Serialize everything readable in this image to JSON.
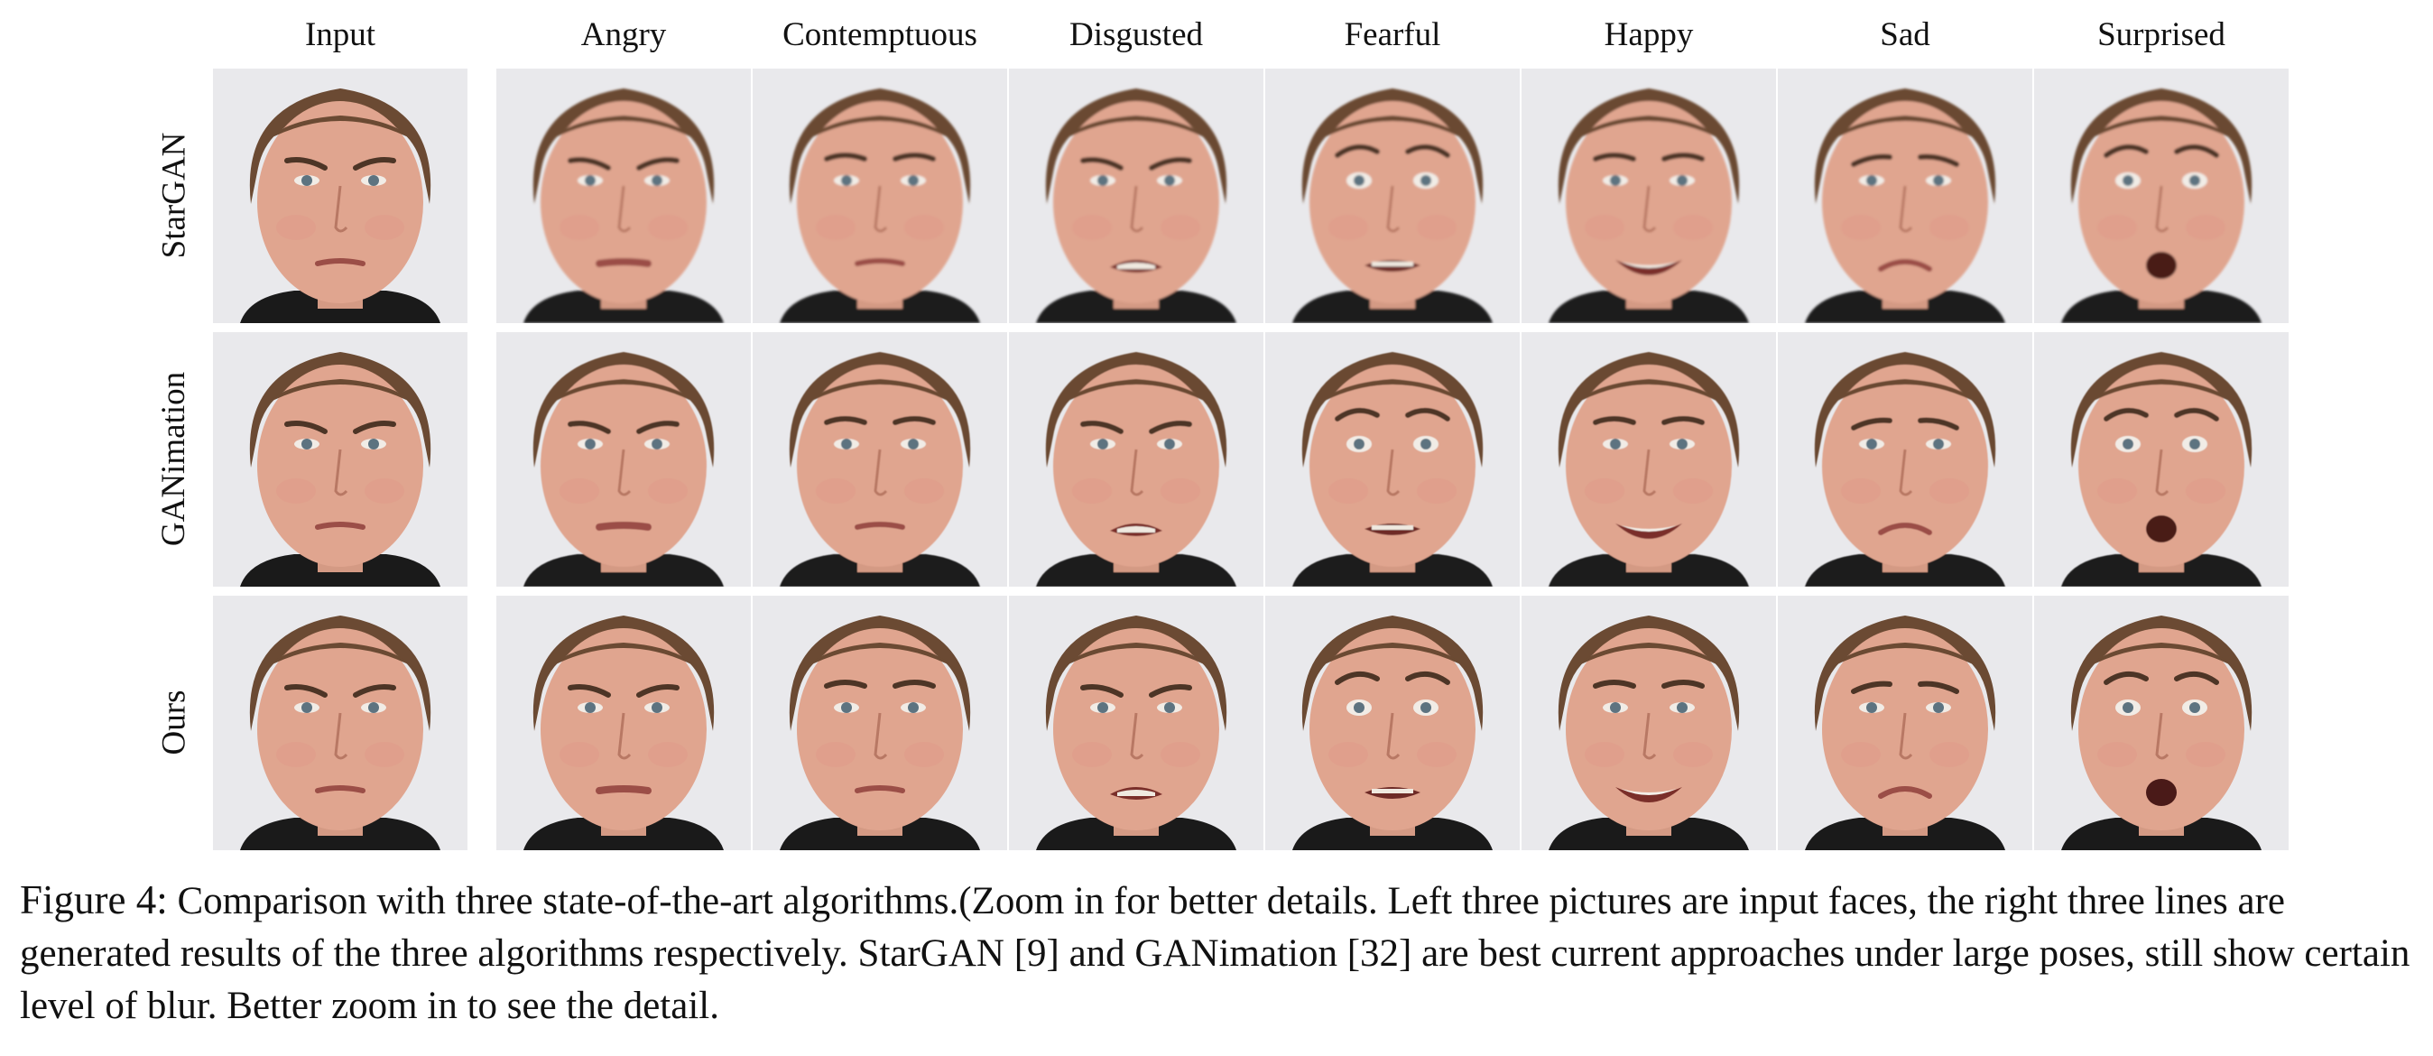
{
  "figure": {
    "columns": [
      "Input",
      "Angry",
      "Contemptuous",
      "Disgusted",
      "Fearful",
      "Happy",
      "Sad",
      "Surprised"
    ],
    "rows": [
      "StarGAN",
      "GANimation",
      "Ours"
    ],
    "caption_label": "Figure 4:",
    "caption_text": " Comparison with three state-of-the-art algorithms.(Zoom in for better details. Left three pictures are input faces, the right three lines are generated results of the three algorithms respectively. StarGAN [9] and GANimation [32] are best current approaches under large poses, still show certain level of blur. Better zoom in to see the detail."
  },
  "colors": {
    "background": "#e9e9ec",
    "skin": "#e0a58f",
    "hair": "#6b4a33",
    "shirt": "#1a1a1a"
  }
}
